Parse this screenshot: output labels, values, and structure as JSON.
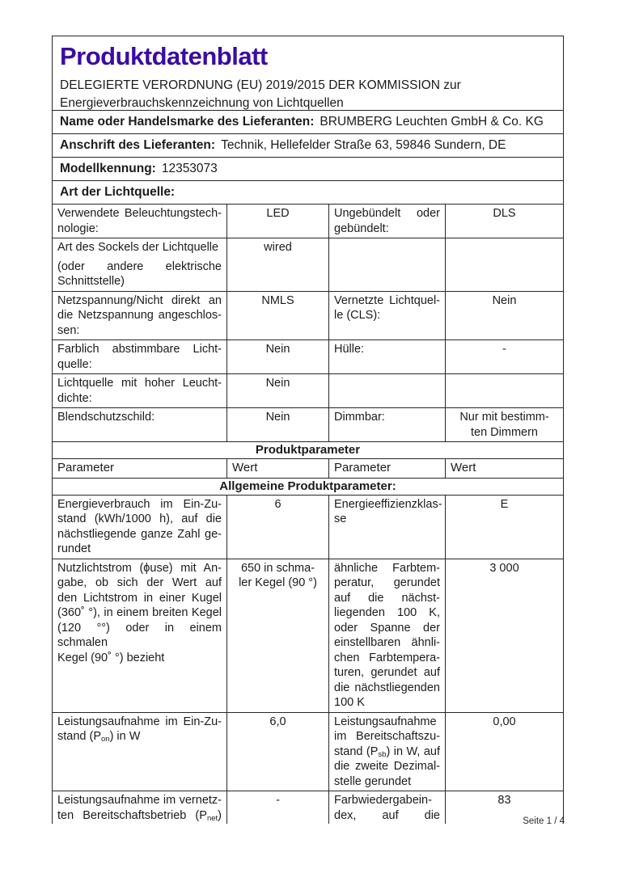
{
  "doc": {
    "title": "Produktdatenblatt",
    "regulation_lines": [
      "DELEGIERTE VERORDNUNG (EU) 2019/2015 DER KOMMISSION zur",
      "Energieverbrauchskennzeichnung von Lichtquellen"
    ],
    "colors": {
      "title": "#3a0ca3",
      "border": "#262626",
      "text": "#1b1b1b"
    },
    "footer": "Seite 1 / 4"
  },
  "supplier_rows": [
    {
      "label": "Name oder Handelsmarke des Lieferanten:",
      "value": "BRUMBERG Leuchten GmbH & Co. KG"
    },
    {
      "label": "Anschrift des Lieferanten:",
      "value": "Technik, Hellefelder Straße 63, 59846 Sundern, DE"
    },
    {
      "label": "Modellkennung:",
      "value": "12353073"
    },
    {
      "label": "Art der Lichtquelle:",
      "value": ""
    }
  ],
  "light_table": {
    "rows": [
      {
        "cells": [
          {
            "lines": [
              "Verwendete Beleuchtungstech-",
              "nologie:"
            ],
            "align": "justify",
            "stretch_last": false
          },
          {
            "lines": [
              "LED"
            ],
            "align": "center"
          },
          {
            "lines": [
              "Ungebündelt oder",
              "gebündelt:"
            ],
            "align": "justify",
            "stretch_last": false
          },
          {
            "lines": [
              "DLS"
            ],
            "align": "center"
          }
        ]
      },
      {
        "cells": [
          {
            "lines": [
              "Art des Sockels der Lichtquelle",
              "",
              "(oder andere elektrische",
              "Schnittstelle)"
            ],
            "align": "justify",
            "stretch_last": false
          },
          {
            "lines": [
              "wired"
            ],
            "align": "center"
          },
          {
            "lines": [],
            "align": "justify"
          },
          {
            "lines": [],
            "align": "center"
          }
        ]
      },
      {
        "cells": [
          {
            "lines": [
              "Netzspannung/Nicht direkt an",
              "die Netzspannung angeschlos-",
              "sen:"
            ],
            "align": "justify",
            "stretch_last": false
          },
          {
            "lines": [
              "NMLS"
            ],
            "align": "center"
          },
          {
            "lines": [
              "Vernetzte Lichtquel-",
              "le (CLS):"
            ],
            "align": "justify",
            "stretch_last": false
          },
          {
            "lines": [
              "Nein"
            ],
            "align": "center"
          }
        ]
      },
      {
        "cells": [
          {
            "lines": [
              "Farblich abstimmbare Licht-",
              "quelle:"
            ],
            "align": "justify",
            "stretch_last": false
          },
          {
            "lines": [
              "Nein"
            ],
            "align": "center"
          },
          {
            "lines": [
              "Hülle:"
            ],
            "align": "justify",
            "stretch_last": false
          },
          {
            "lines": [
              "-"
            ],
            "align": "center"
          }
        ]
      },
      {
        "cells": [
          {
            "lines": [
              "Lichtquelle mit hoher Leucht-",
              "dichte:"
            ],
            "align": "justify",
            "stretch_last": false
          },
          {
            "lines": [
              "Nein"
            ],
            "align": "center"
          },
          {
            "lines": [],
            "align": "justify"
          },
          {
            "lines": [],
            "align": "center"
          }
        ]
      },
      {
        "cells": [
          {
            "lines": [
              "Blendschutzschild:"
            ],
            "align": "justify",
            "stretch_last": false
          },
          {
            "lines": [
              "Nein"
            ],
            "align": "center"
          },
          {
            "lines": [
              "Dimmbar:"
            ],
            "align": "justify",
            "stretch_last": false
          },
          {
            "lines": [
              "Nur mit bestimm-",
              "ten Dimmern"
            ],
            "align": "center"
          }
        ]
      }
    ]
  },
  "product_params": {
    "section_title": "Produktparameter",
    "columns": [
      "Parameter",
      "Wert",
      "Parameter",
      "Wert"
    ],
    "subsection_title": "Allgemeine Produktparameter:",
    "rows": [
      {
        "cells": [
          {
            "lines": [
              "Energieverbrauch im Ein-Zu-",
              "stand (kWh/1000 h), auf die",
              "nächstliegende ganze Zahl ge-",
              "rundet"
            ],
            "align": "justify",
            "stretch_last": false
          },
          {
            "lines": [
              "6"
            ],
            "align": "center"
          },
          {
            "lines": [
              "Energieeffizienzklas-",
              "se"
            ],
            "align": "justify",
            "stretch_last": false
          },
          {
            "lines": [
              "E"
            ],
            "align": "center"
          }
        ]
      },
      {
        "cells": [
          {
            "lines": [
              "Nutzlichtstrom (ϕuse) mit An-",
              "gabe, ob sich der Wert auf",
              "den Lichtstrom in einer Kugel",
              "(360˚ °), in einem breiten Kegel",
              "(120 °°) oder in einem schmalen",
              "Kegel (90˚ °) bezieht"
            ],
            "align": "justify",
            "stretch_last": false
          },
          {
            "lines": [
              "650 in schma-",
              "ler Kegel (90 °)"
            ],
            "align": "center"
          },
          {
            "lines": [
              "ähnliche Farbtem-",
              "peratur, gerundet",
              "auf die nächst-",
              "liegenden 100 K,",
              "oder Spanne der",
              "einstellbaren ähnli-",
              "chen Farbtempera-",
              "turen, gerundet auf",
              "die nächstliegenden",
              "100 K"
            ],
            "align": "justify",
            "stretch_last": false
          },
          {
            "lines": [
              "3 000"
            ],
            "align": "center"
          }
        ]
      },
      {
        "cells": [
          {
            "lines": [
              "Leistungsaufnahme im Ein-Zu-",
              "stand (P{sub:on}) in W"
            ],
            "align": "justify",
            "stretch_last": false
          },
          {
            "lines": [
              "6,0"
            ],
            "align": "center"
          },
          {
            "lines": [
              "Leistungsaufnahme",
              "im Bereitschaftszu-",
              "stand (P{sub:sb}) in W, auf",
              "die zweite Dezimal-",
              "stelle gerundet"
            ],
            "align": "justify",
            "stretch_last": false
          },
          {
            "lines": [
              "0,00"
            ],
            "align": "center"
          }
        ]
      },
      {
        "cells": [
          {
            "lines": [
              "Leistungsaufnahme im vernetz-",
              "ten Bereitschaftsbetrieb (P{sub:net})"
            ],
            "align": "justify",
            "stretch_last": true
          },
          {
            "lines": [
              "-"
            ],
            "align": "center"
          },
          {
            "lines": [
              "Farbwiedergabein-",
              "dex, auf die"
            ],
            "align": "justify",
            "stretch_last": true
          },
          {
            "lines": [
              "83"
            ],
            "align": "center"
          }
        ]
      }
    ]
  }
}
